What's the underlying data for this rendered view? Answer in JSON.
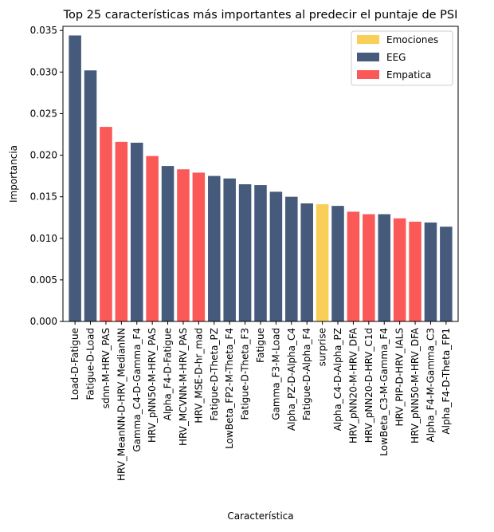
{
  "chart_data": {
    "type": "bar",
    "title": "Top 25 características más importantes al predecir el puntaje de PSI",
    "xlabel": "Característica",
    "ylabel": "Importancia",
    "ylim": [
      0,
      0.0355
    ],
    "yticks": [
      "0.000",
      "0.005",
      "0.010",
      "0.015",
      "0.020",
      "0.025",
      "0.030",
      "0.035"
    ],
    "grid": false,
    "legend_position": "top-right",
    "legend": [
      {
        "name": "Emociones",
        "color": "#f9cf58"
      },
      {
        "name": "EEG",
        "color": "#465b7c"
      },
      {
        "name": "Empatica",
        "color": "#fb5858"
      }
    ],
    "categories": [
      "Load-D-Fatigue",
      "Fatigue-D-Load",
      "sdnn-M-HRV_PAS",
      "HRV_MeanNN-D-HRV_MedianNN",
      "Gamma_C4-D-Gamma_F4",
      "HRV_pNN50-M-HRV_PAS",
      "Alpha_F4-D-Fatigue",
      "HRV_MCVNN-M-HRV_PAS",
      "HRV_MSE-D-hr_mad",
      "Fatigue-D-Theta_PZ",
      "LowBeta_FP2-M-Theta_F4",
      "Fatigue-D-Theta_F3",
      "Fatigue",
      "Gamma_F3-M-Load",
      "Alpha_PZ-D-Alpha_C4",
      "Fatigue-D-Alpha_F4",
      "surprise",
      "Alpha_C4-D-Alpha_PZ",
      "HRV_pNN20-M-HRV_DFA",
      "HRV_pNN20-D-HRV_C1d",
      "LowBeta_C3-M-Gamma_F4",
      "HRV_PIP-D-HRV_IALS",
      "HRV_pNN50-M-HRV_DFA",
      "Alpha_F4-M-Gamma_C3",
      "Alpha_F4-D-Theta_FP1"
    ],
    "values": [
      0.0344,
      0.0302,
      0.0234,
      0.0216,
      0.0215,
      0.0199,
      0.0187,
      0.0183,
      0.0179,
      0.0175,
      0.0172,
      0.0165,
      0.0164,
      0.0156,
      0.015,
      0.0142,
      0.0141,
      0.0139,
      0.0132,
      0.0129,
      0.0129,
      0.0124,
      0.012,
      0.0119,
      0.0114
    ],
    "groups": [
      "EEG",
      "EEG",
      "Empatica",
      "Empatica",
      "EEG",
      "Empatica",
      "EEG",
      "Empatica",
      "Empatica",
      "EEG",
      "EEG",
      "EEG",
      "EEG",
      "EEG",
      "EEG",
      "EEG",
      "Emociones",
      "EEG",
      "Empatica",
      "Empatica",
      "EEG",
      "Empatica",
      "Empatica",
      "EEG",
      "EEG"
    ]
  }
}
